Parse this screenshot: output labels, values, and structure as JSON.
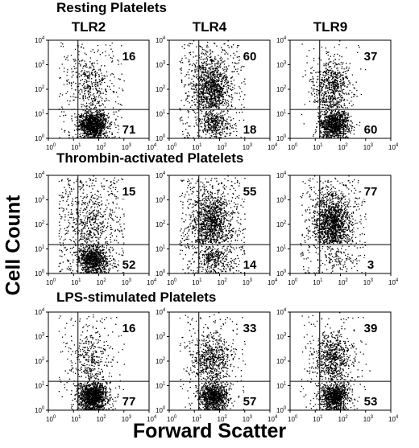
{
  "figure": {
    "row_titles": [
      "Resting Platelets",
      "Thrombin-activated Platelets",
      "LPS-stimulated Platelets"
    ],
    "column_titles": [
      "TLR2",
      "TLR4",
      "TLR9"
    ],
    "y_axis_label": "Cell Count",
    "x_axis_label": "Forward Scatter"
  },
  "chart_data": {
    "type": "scatter",
    "subtype": "flow-cytometry-dot-plot-grid",
    "xscale": "log",
    "yscale": "log",
    "xlim": [
      1,
      10000
    ],
    "ylim": [
      1,
      10000
    ],
    "x_tick_labels": [
      "10^0",
      "10^1",
      "10^2",
      "10^3",
      "10^4"
    ],
    "y_tick_labels": [
      "10^0",
      "10^1",
      "10^2",
      "10^3",
      "10^4"
    ],
    "xlabel": "Forward Scatter",
    "ylabel": "Cell Count",
    "grid": false,
    "gate": {
      "x": 15,
      "y": 15
    },
    "panels": [
      {
        "condition": "Resting Platelets",
        "receptor": "TLR2",
        "upper_value": 16,
        "lower_value": 71
      },
      {
        "condition": "Resting Platelets",
        "receptor": "TLR4",
        "upper_value": 60,
        "lower_value": 18
      },
      {
        "condition": "Resting Platelets",
        "receptor": "TLR9",
        "upper_value": 37,
        "lower_value": 60
      },
      {
        "condition": "Thrombin-activated Platelets",
        "receptor": "TLR2",
        "upper_value": 15,
        "lower_value": 52
      },
      {
        "condition": "Thrombin-activated Platelets",
        "receptor": "TLR4",
        "upper_value": 55,
        "lower_value": 14
      },
      {
        "condition": "Thrombin-activated Platelets",
        "receptor": "TLR9",
        "upper_value": 77,
        "lower_value": 3
      },
      {
        "condition": "LPS-stimulated Platelets",
        "receptor": "TLR2",
        "upper_value": 16,
        "lower_value": 77
      },
      {
        "condition": "LPS-stimulated Platelets",
        "receptor": "TLR4",
        "upper_value": 33,
        "lower_value": 57
      },
      {
        "condition": "LPS-stimulated Platelets",
        "receptor": "TLR9",
        "upper_value": 39,
        "lower_value": 53
      }
    ]
  }
}
